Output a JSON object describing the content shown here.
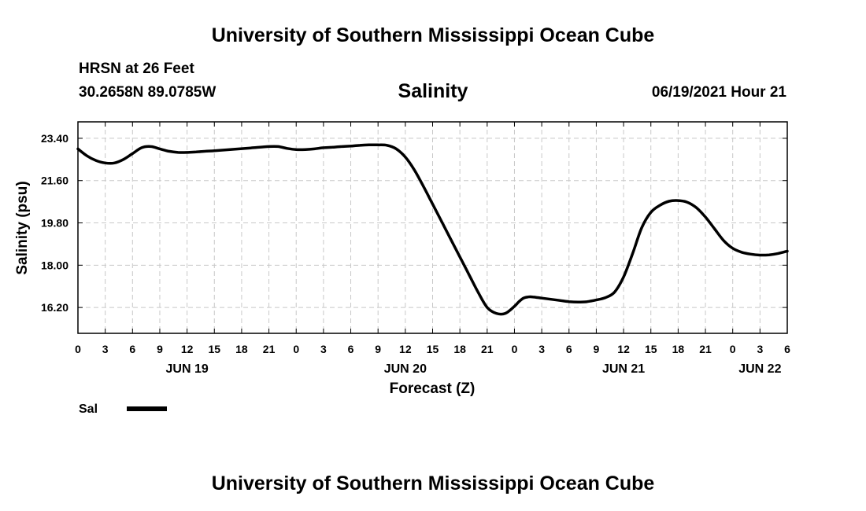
{
  "header": {
    "title_top": "University of Southern Mississippi Ocean Cube",
    "station": "HRSN at 26 Feet",
    "coords": "30.2658N  89.0785W",
    "variable": "Salinity",
    "datetime": "06/19/2021 Hour 21",
    "title_bottom": "University of Southern Mississippi Ocean Cube"
  },
  "legend": {
    "label": "Sal",
    "color": "#000000"
  },
  "chart_data": {
    "type": "line",
    "title": "Salinity",
    "xlabel": "Forecast (Z)",
    "ylabel": "Salinity (psu)",
    "ylim": [
      15.1,
      24.1
    ],
    "xlim": [
      0,
      78
    ],
    "y_ticks": [
      "16.20",
      "18.00",
      "19.80",
      "21.60",
      "23.40"
    ],
    "x_ticks": [
      "0",
      "3",
      "6",
      "9",
      "12",
      "15",
      "18",
      "21",
      "0",
      "3",
      "6",
      "9",
      "12",
      "15",
      "18",
      "21",
      "0",
      "3",
      "6",
      "9",
      "12",
      "15",
      "18",
      "21",
      "0",
      "3",
      "6"
    ],
    "date_labels": [
      {
        "label": "JUN 19",
        "x": 12
      },
      {
        "label": "JUN 20",
        "x": 36
      },
      {
        "label": "JUN 21",
        "x": 60
      },
      {
        "label": "JUN 22",
        "x": 75
      }
    ],
    "grid": true,
    "series": [
      {
        "name": "Sal",
        "x": [
          0,
          1,
          2,
          3,
          4,
          5,
          6,
          7,
          8,
          9,
          10,
          11,
          12,
          13,
          14,
          15,
          17,
          19,
          21,
          22,
          23,
          24,
          25,
          26,
          27,
          28,
          29,
          30,
          31,
          32,
          33,
          34,
          35,
          36,
          37,
          38,
          39,
          40,
          41,
          42,
          43,
          44,
          45,
          46,
          47,
          48,
          48.5,
          49,
          49.5,
          50,
          51,
          52,
          53,
          54,
          55,
          56,
          57,
          58,
          59,
          60,
          61,
          62,
          63,
          64,
          65,
          66,
          67,
          68,
          69,
          70,
          71,
          72,
          73,
          74,
          75,
          76,
          77,
          78
        ],
        "values": [
          22.95,
          22.65,
          22.45,
          22.35,
          22.35,
          22.5,
          22.75,
          23.0,
          23.05,
          22.95,
          22.85,
          22.8,
          22.8,
          22.82,
          22.85,
          22.87,
          22.93,
          22.99,
          23.05,
          23.05,
          22.97,
          22.92,
          22.92,
          22.95,
          23.0,
          23.02,
          23.05,
          23.07,
          23.1,
          23.12,
          23.12,
          23.1,
          22.95,
          22.6,
          22.05,
          21.35,
          20.6,
          19.85,
          19.1,
          18.35,
          17.6,
          16.85,
          16.2,
          15.95,
          15.95,
          16.25,
          16.45,
          16.6,
          16.65,
          16.65,
          16.6,
          16.55,
          16.5,
          16.45,
          16.43,
          16.45,
          16.52,
          16.62,
          16.85,
          17.5,
          18.5,
          19.6,
          20.25,
          20.55,
          20.72,
          20.75,
          20.68,
          20.45,
          20.05,
          19.55,
          19.05,
          18.72,
          18.55,
          18.47,
          18.43,
          18.44,
          18.5,
          18.6
        ]
      }
    ]
  }
}
